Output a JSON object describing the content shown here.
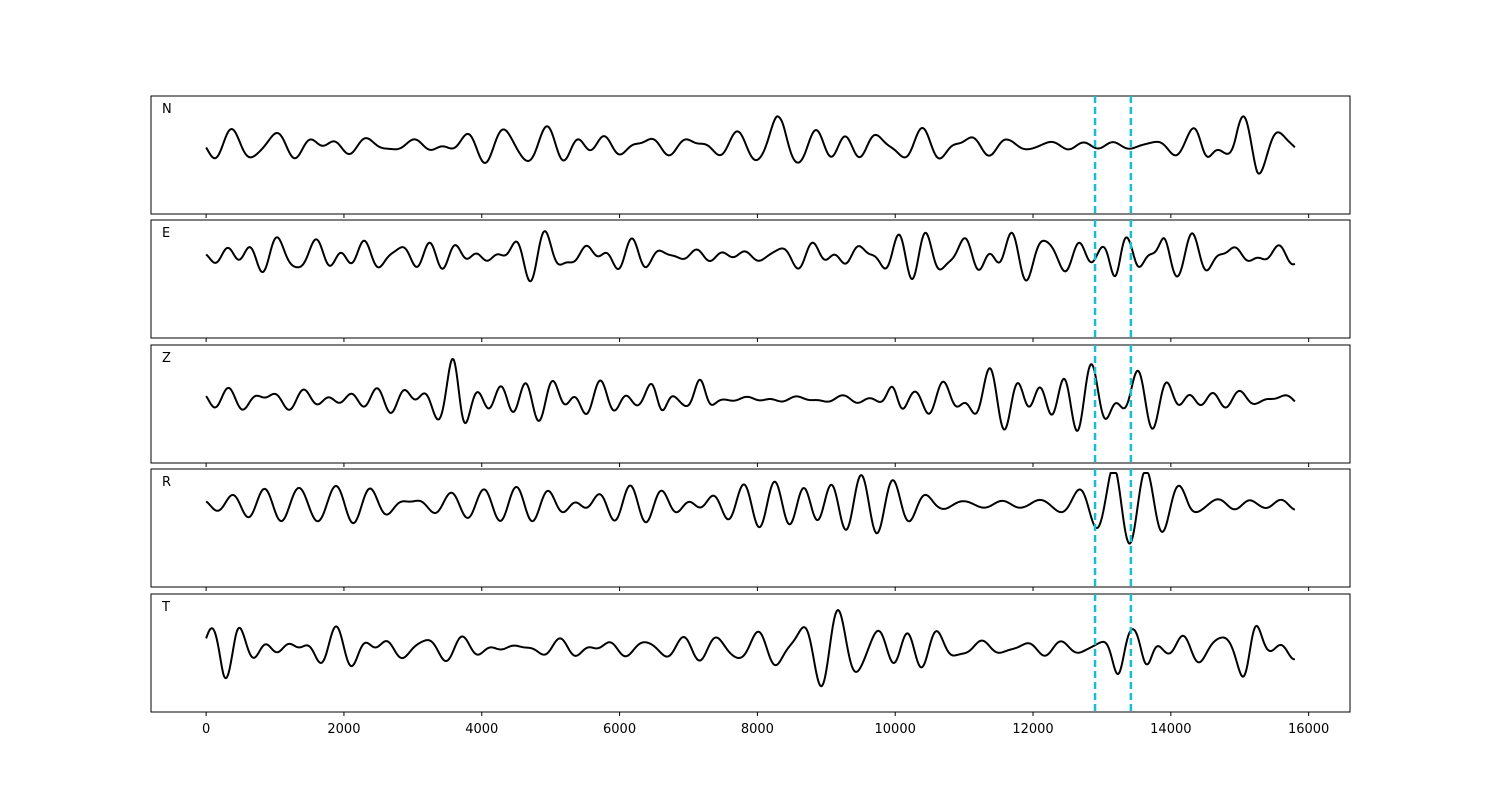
{
  "chart_data": {
    "type": "line",
    "title": "",
    "xlabel": "",
    "ylabel": "",
    "xlim": [
      -800,
      16600
    ],
    "x_ticks": [
      0,
      2000,
      4000,
      6000,
      8000,
      10000,
      12000,
      14000,
      16000
    ],
    "x_tick_labels": [
      "0",
      "2000",
      "4000",
      "6000",
      "8000",
      "10000",
      "12000",
      "14000",
      "16000"
    ],
    "samples": [
      0,
      15800
    ],
    "grid": false,
    "legend": "none",
    "trace_color": "#000000",
    "marker_color": "#17becf",
    "markers": [
      12900,
      13420
    ],
    "series": [
      {
        "label": "N",
        "seed": 11,
        "level": 0.42,
        "amplitude": 0.38
      },
      {
        "label": "E",
        "seed": 23,
        "level": 0.3,
        "amplitude": 0.52
      },
      {
        "label": "Z",
        "seed": 37,
        "level": 0.46,
        "amplitude": 0.48
      },
      {
        "label": "R",
        "seed": 51,
        "level": 0.3,
        "amplitude": 0.55
      },
      {
        "label": "T",
        "seed": 67,
        "level": 0.46,
        "amplitude": 0.46
      }
    ],
    "bursts": {
      "N": [
        [
          8320,
          0.9
        ],
        [
          15100,
          0.9
        ],
        [
          14500,
          0.7
        ]
      ],
      "E": [
        [
          13250,
          0.8
        ],
        [
          13600,
          1.0
        ],
        [
          13850,
          0.8
        ]
      ],
      "Z": [
        [
          6580,
          0.9
        ],
        [
          7200,
          0.9
        ],
        [
          10000,
          0.9
        ],
        [
          3650,
          0.6
        ]
      ],
      "R": [
        [
          13620,
          1.0
        ],
        [
          14100,
          0.8
        ],
        [
          13300,
          0.6
        ]
      ],
      "T": [
        [
          13250,
          0.9
        ],
        [
          13650,
          0.9
        ],
        [
          15150,
          0.8
        ],
        [
          330,
          0.7
        ]
      ]
    }
  }
}
